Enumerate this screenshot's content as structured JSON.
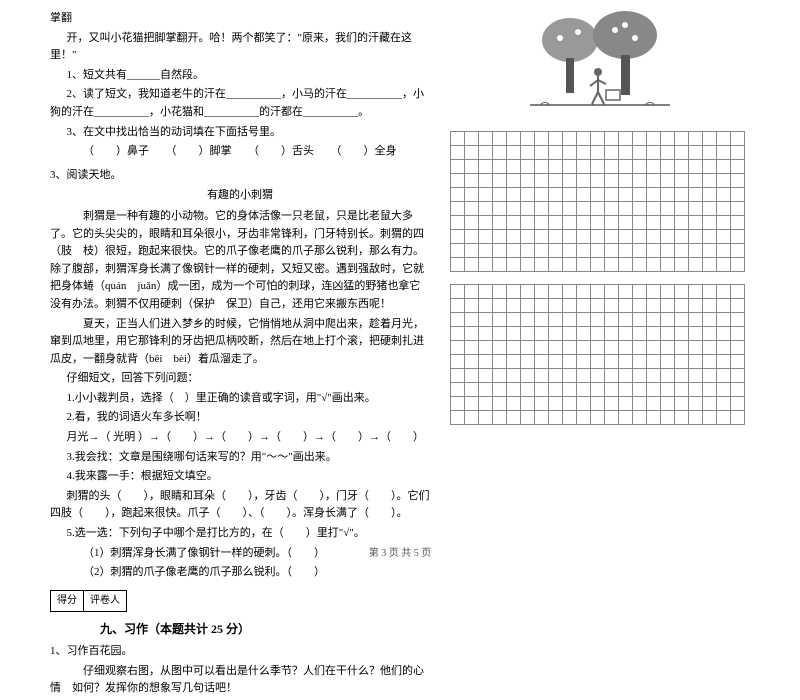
{
  "left": {
    "l0": "掌翻",
    "l1": "开，又叫小花猫把脚掌翻开。哈！两个都笑了：\"原来，我们的汗藏在这里！\"",
    "l2": "1、短文共有______自然段。",
    "l3": "2、读了短文，我知道老牛的汗在__________，小马的汗在__________，小狗的汗在__________，小花猫和__________的汗都在__________。",
    "l4": "3、在文中找出恰当的动词填在下面括号里。",
    "l5a": "（　　）鼻子　　（　　）脚掌　　（　　）舌头　　（　　）全身",
    "q3": "3、阅读天地。",
    "t1": "有趣的小刺猬",
    "p1": "刺猬是一种有趣的小动物。它的身体活像一只老鼠，只是比老鼠大多了。它的头尖尖的，眼睛和耳朵很小，牙齿非常锋利，门牙特别长。刺猬的四（肢　枝）很短，跑起来很快。它的爪子像老鹰的爪子那么锐利，那么有力。除了腹部，刺猬浑身长满了像钢针一样的硬刺，又短又密。遇到强敌时，它就把身体蜷（quán　juǎn）成一团，成为一个可怕的刺球，连凶猛的野猪也拿它没有办法。刺猬不仅用硬刺（保护　保卫）自己，还用它来搬东西呢！",
    "p2": "夏天，正当人们进入梦乡的时候，它悄悄地从洞中爬出来，趁着月光，窜到瓜地里，用它那锋利的牙齿把瓜柄咬断，然后在地上打个滚，把硬刺扎进瓜皮，一翻身就背（bēi　bèi）着瓜溜走了。",
    "q_intro": "仔细短文，回答下列问题：",
    "q1_1": "1.小小裁判员，选择（　）里正确的读音或字词，用\"√\"画出来。",
    "q1_2": "2.看，我的词语火车多长啊！",
    "q1_2b": "月光→（ 光明 ）→（　　）→（　　）→（　　）→（　　）→（　　）",
    "q1_3": "3.我会找：文章是围绕哪句话来写的？用\"～～\"画出来。",
    "q1_4": "4.我来露一手：根据短文填空。",
    "q1_4a": "刺猬的头（　　），眼睛和耳朵（　　），牙齿（　　），门牙（　　）。它们四肢（　　），跑起来很快。爪子（　　）、（　　）。浑身长满了（　　）。",
    "q1_5": "5.选一选：下列句子中哪个是打比方的，在（　　）里打\"√\"。",
    "q1_5a": "（1）刺猬浑身长满了像钢针一样的硬刺。（　　）",
    "q1_5b": "（2）刺猬的爪子像老鹰的爪子那么锐利。（　　）",
    "score_a": "得分",
    "score_b": "评卷人",
    "sec9": "九、习作（本题共计 25 分）",
    "zw1": "1、习作百花园。",
    "zw2": "仔细观察右图，从图中可以看出是什么季节？人们在干什么？他们的心情　如何？发挥你的想象写几句话吧！"
  },
  "grid": {
    "rows1": 10,
    "rows2": 10,
    "cols": 21,
    "border_color": "#888888",
    "cell_size": 14
  },
  "footer": "第 3 页  共 5 页",
  "colors": {
    "text": "#000000",
    "bg": "#ffffff",
    "grid": "#888888"
  }
}
